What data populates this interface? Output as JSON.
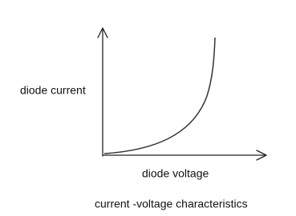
{
  "labels": {
    "y_axis": "diode current",
    "x_axis": "diode voltage",
    "caption": "current -voltage characteristics"
  }
}
